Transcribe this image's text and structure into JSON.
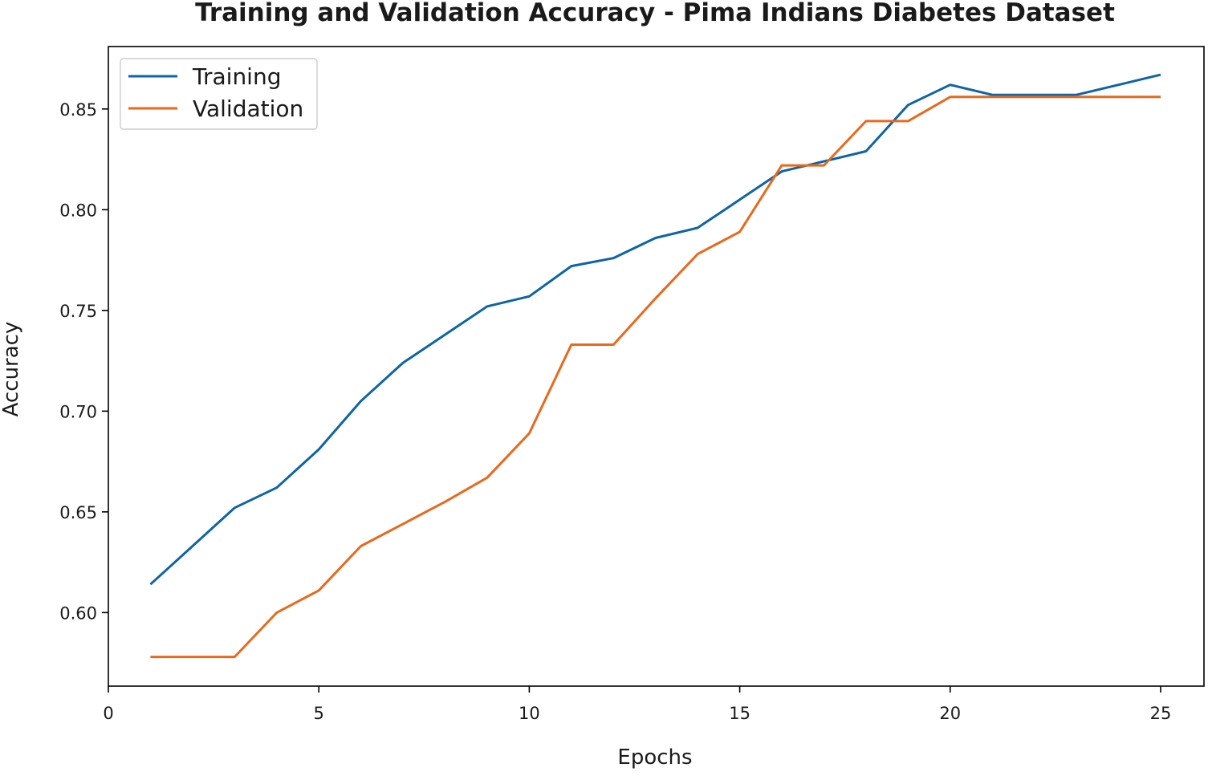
{
  "chart_data": {
    "type": "line",
    "title": "Training and Validation Accuracy - Pima Indians Diabetes Dataset",
    "xlabel": "Epochs",
    "ylabel": "Accuracy",
    "xlim": [
      0,
      26.03
    ],
    "ylim": [
      0.5635,
      0.881
    ],
    "xticks": [
      0,
      5,
      10,
      15,
      20,
      25
    ],
    "yticks": [
      0.6,
      0.65,
      0.7,
      0.75,
      0.8,
      0.85
    ],
    "xtick_labels": [
      "0",
      "5",
      "10",
      "15",
      "20",
      "25"
    ],
    "ytick_labels": [
      "0.60",
      "0.65",
      "0.70",
      "0.75",
      "0.80",
      "0.85"
    ],
    "grid": false,
    "legend_position": "upper-left",
    "x": [
      1,
      2,
      3,
      4,
      5,
      6,
      7,
      8,
      9,
      10,
      11,
      12,
      13,
      14,
      15,
      16,
      17,
      18,
      19,
      20,
      21,
      22,
      23,
      24,
      25
    ],
    "series": [
      {
        "name": "Training",
        "color": "#0e64a5",
        "values": [
          0.614,
          0.633,
          0.652,
          0.662,
          0.681,
          0.705,
          0.724,
          0.738,
          0.752,
          0.757,
          0.772,
          0.776,
          0.786,
          0.791,
          0.805,
          0.819,
          0.824,
          0.829,
          0.852,
          0.862,
          0.857,
          0.857,
          0.857,
          0.862,
          0.867
        ]
      },
      {
        "name": "Validation",
        "color": "#e8691c",
        "values": [
          0.578,
          0.578,
          0.578,
          0.6,
          0.611,
          0.633,
          0.644,
          0.655,
          0.667,
          0.689,
          0.733,
          0.733,
          0.756,
          0.778,
          0.789,
          0.822,
          0.822,
          0.844,
          0.844,
          0.856,
          0.856,
          0.856,
          0.856,
          0.856,
          0.856
        ]
      }
    ]
  }
}
